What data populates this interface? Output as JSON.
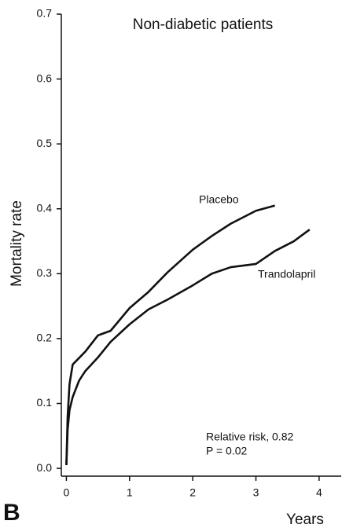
{
  "chart_data": {
    "type": "line",
    "title": "Non-diabetic patients",
    "panel": "B",
    "xlabel": "Years",
    "ylabel": "Mortality rate",
    "xlim": [
      -0.08,
      4.35
    ],
    "xticks": [
      0,
      1,
      2,
      3,
      4
    ],
    "ylim": [
      -0.012,
      0.7
    ],
    "yticks": [
      {
        "value": 0,
        "label": "0.0"
      },
      0.1,
      0.2,
      0.3,
      0.4,
      0.5,
      0.6,
      0.7
    ],
    "annotations": [
      "Placebo",
      "Trandolapril",
      "Relative risk, 0.82",
      "P = 0.02"
    ],
    "series": [
      {
        "name": "Placebo",
        "color": "#111111",
        "x": [
          0,
          0.02,
          0.05,
          0.1,
          0.2,
          0.3,
          0.5,
          0.7,
          1,
          1.3,
          1.6,
          2,
          2.3,
          2.6,
          3,
          3.3
        ],
        "values": [
          0.005,
          0.08,
          0.13,
          0.16,
          0.17,
          0.18,
          0.205,
          0.212,
          0.247,
          0.272,
          0.302,
          0.337,
          0.358,
          0.377,
          0.397,
          0.405
        ]
      },
      {
        "name": "Trandolapril",
        "color": "#111111",
        "x": [
          0,
          0.02,
          0.05,
          0.1,
          0.2,
          0.3,
          0.5,
          0.7,
          1,
          1.3,
          1.6,
          2,
          2.3,
          2.6,
          3,
          3.3,
          3.6,
          3.85
        ],
        "values": [
          0.005,
          0.06,
          0.09,
          0.11,
          0.135,
          0.15,
          0.171,
          0.195,
          0.222,
          0.245,
          0.26,
          0.282,
          0.3,
          0.31,
          0.315,
          0.335,
          0.35,
          0.368
        ]
      }
    ]
  }
}
